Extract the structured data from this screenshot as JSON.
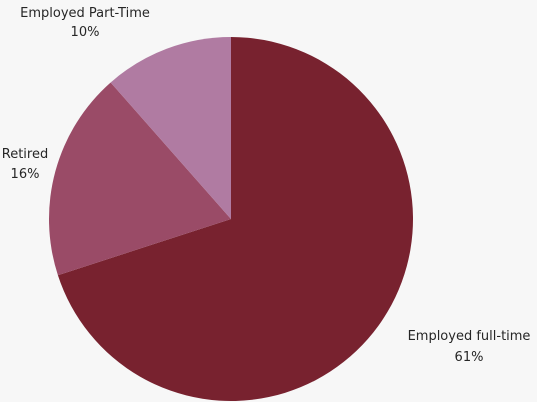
{
  "chart_data": {
    "type": "pie",
    "start_angle_deg": 0,
    "direction": "clockwise",
    "slices": [
      {
        "label": "Employed full-time",
        "percent_label": "61%",
        "value": 0.7,
        "color": "#78222f"
      },
      {
        "label": "Retired",
        "percent_label": "16%",
        "value": 0.185,
        "color": "#9a4b67"
      },
      {
        "label": "Employed Part-Time",
        "percent_label": "10%",
        "value": 0.115,
        "color": "#b07ba2"
      }
    ],
    "legend": "none"
  }
}
